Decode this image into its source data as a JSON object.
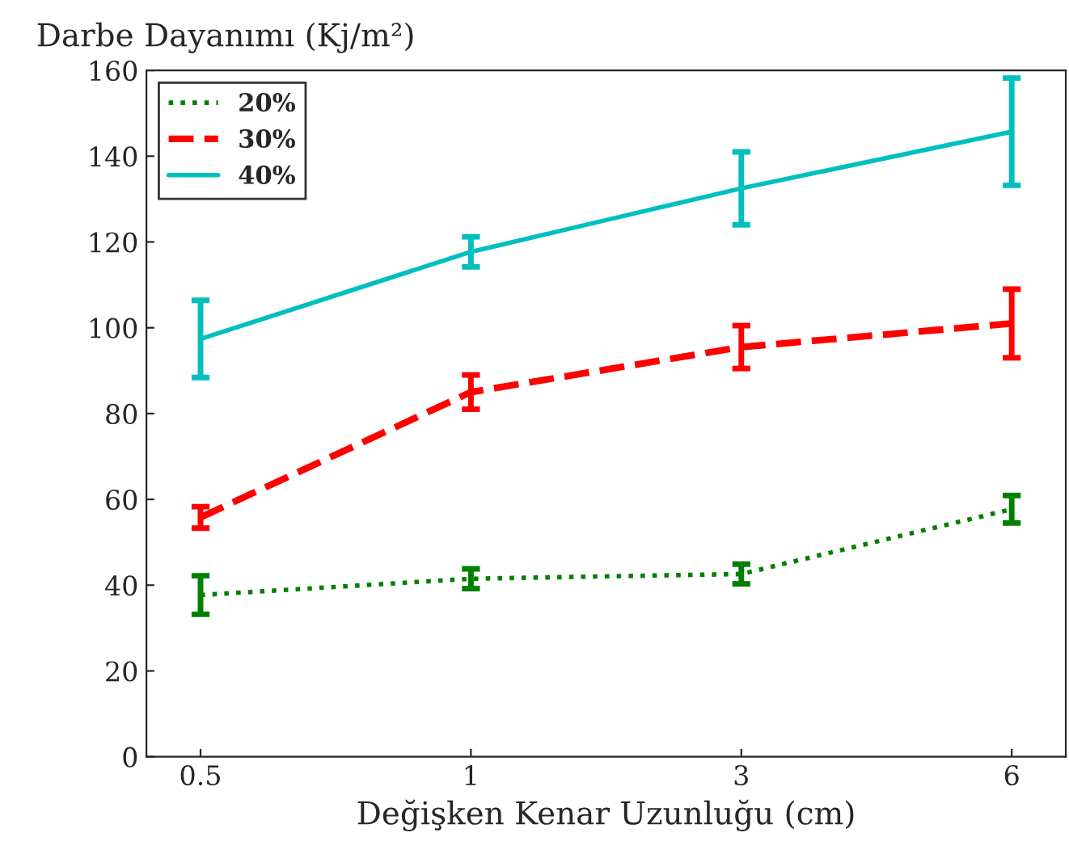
{
  "chart_data": {
    "type": "line",
    "ylabel": "Darbe Dayanımı (Kj/m²)",
    "xlabel": "Değişken Kenar Uzunluğu (cm)",
    "categories": [
      "0.5",
      "1",
      "3",
      "6"
    ],
    "series": [
      {
        "name": "20%",
        "color": "#008000",
        "line_style": "dotted",
        "values": [
          37.7,
          41.5,
          42.6,
          57.7
        ],
        "errors": [
          4.5,
          2.3,
          2.3,
          3.2
        ]
      },
      {
        "name": "30%",
        "color": "#ff0000",
        "line_style": "dashed",
        "values": [
          55.8,
          85,
          95.5,
          101
        ],
        "errors": [
          2.5,
          4,
          5,
          8
        ]
      },
      {
        "name": "40%",
        "color": "#00bfbf",
        "line_style": "solid",
        "values": [
          97.4,
          117.7,
          132.5,
          145.7
        ],
        "errors": [
          9,
          3.5,
          8.5,
          12.5
        ]
      }
    ],
    "ylim": [
      0,
      160
    ],
    "yticks": [
      0,
      20,
      40,
      60,
      80,
      100,
      120,
      140,
      160
    ],
    "grid": false,
    "legend": "top left",
    "marker": "none"
  }
}
